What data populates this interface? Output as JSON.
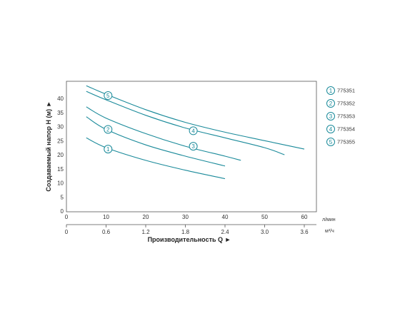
{
  "chart_data": {
    "type": "line",
    "ylabel": "Создаваемый напор H (м) ►",
    "xlabel": "Производительность Q ►",
    "x_unit": "л/мин",
    "x2_unit": "м³/ч",
    "x_ticks": [
      0,
      10,
      20,
      30,
      40,
      50,
      60
    ],
    "x2_ticks": [
      "0",
      "0.6",
      "1.2",
      "1.8",
      "2.4",
      "3.0",
      "3.6"
    ],
    "y_ticks": [
      0,
      5,
      10,
      15,
      20,
      25,
      30,
      35,
      40
    ],
    "xlim": [
      0,
      66
    ],
    "ylim": [
      0,
      45
    ],
    "grid": false,
    "legend_position": "right",
    "colors": {
      "curve": "#1a8a9a",
      "frame": "#555555"
    },
    "series": [
      {
        "name": "775351",
        "marker": "1",
        "x": [
          5,
          10,
          20,
          30,
          40
        ],
        "y": [
          26,
          22.5,
          18,
          14.5,
          11.5
        ],
        "marker_at": [
          10.5,
          22
        ]
      },
      {
        "name": "775352",
        "marker": "2",
        "x": [
          5,
          10,
          20,
          30,
          40
        ],
        "y": [
          33.5,
          29,
          23.5,
          19.5,
          16
        ],
        "marker_at": [
          10.5,
          29
        ]
      },
      {
        "name": "775353",
        "marker": "3",
        "x": [
          5,
          10,
          20,
          30,
          40,
          44
        ],
        "y": [
          37,
          33,
          27.5,
          23,
          19.5,
          18
        ],
        "marker_at": [
          32,
          23
        ]
      },
      {
        "name": "775354",
        "marker": "4",
        "x": [
          5,
          10,
          20,
          30,
          40,
          50,
          55
        ],
        "y": [
          42.5,
          39.5,
          34,
          29.5,
          26,
          22.5,
          20
        ],
        "marker_at": [
          32,
          28.5
        ]
      },
      {
        "name": "775355",
        "marker": "5",
        "x": [
          5,
          10,
          20,
          30,
          40,
          50,
          60
        ],
        "y": [
          44.5,
          41.5,
          36,
          31.5,
          28,
          25,
          22
        ],
        "marker_at": [
          10.5,
          41
        ]
      }
    ]
  }
}
